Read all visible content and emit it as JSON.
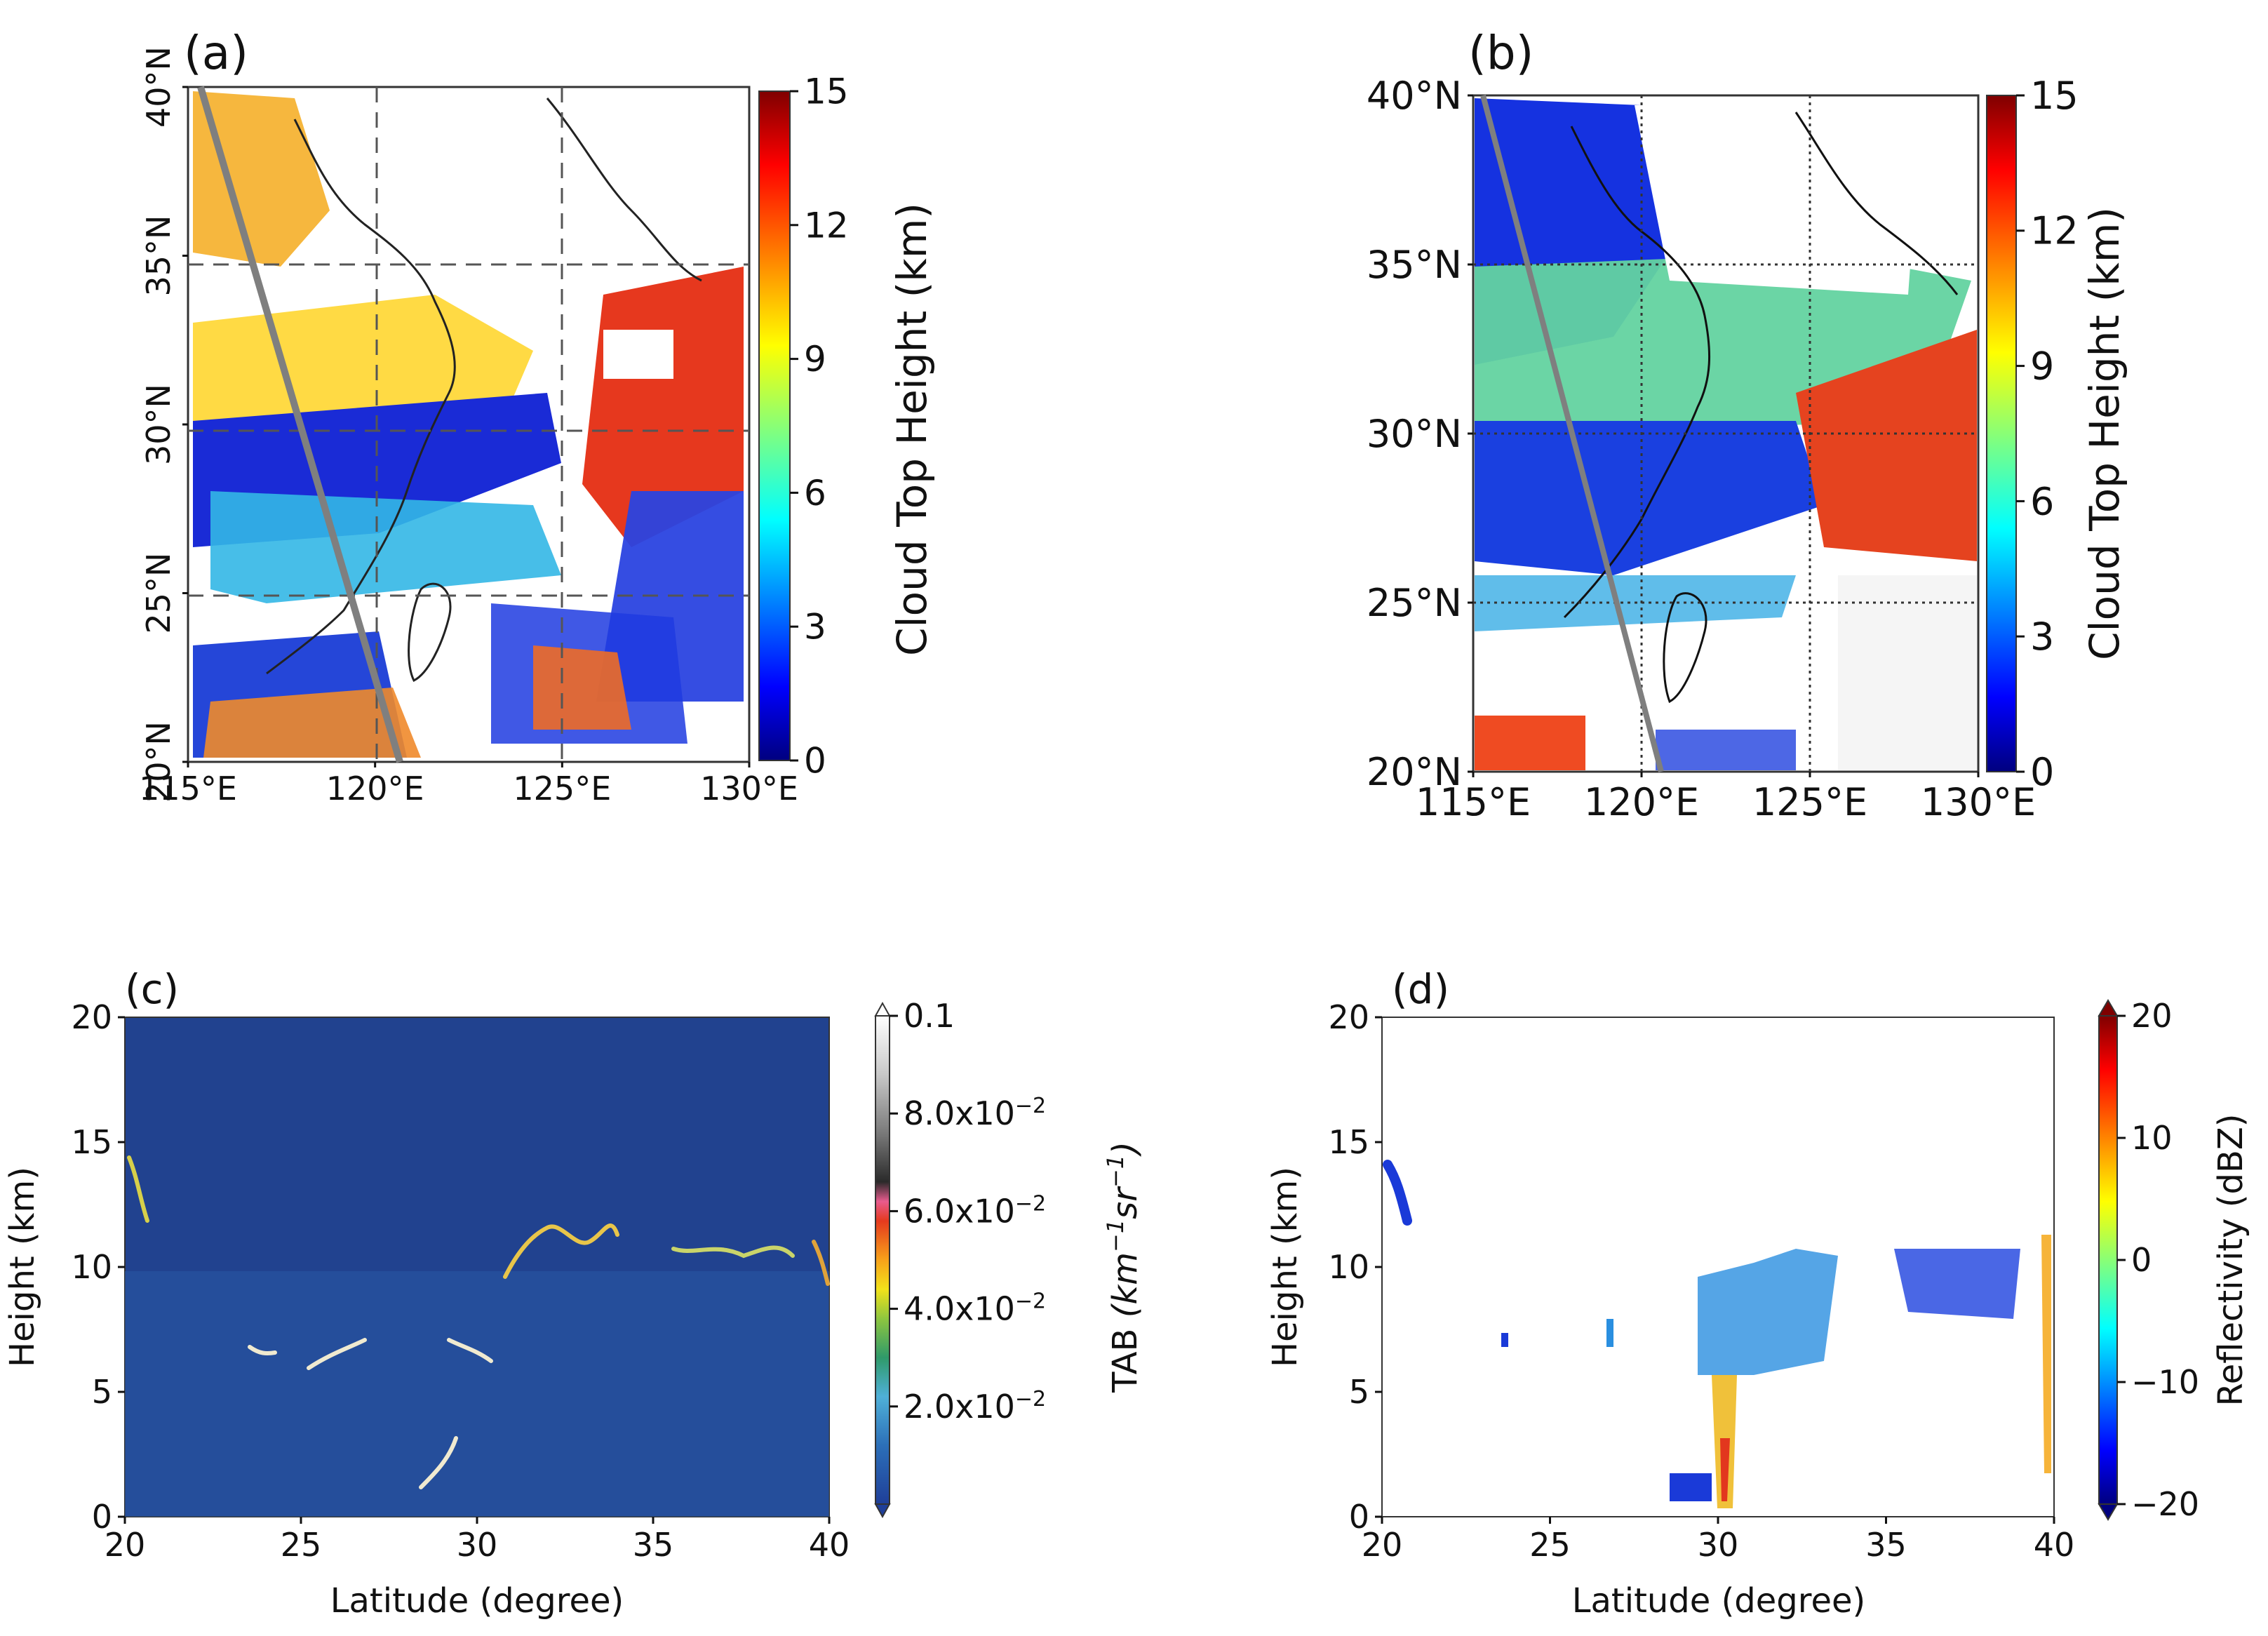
{
  "chart_data": [
    {
      "panel": "(a)",
      "type": "heatmap",
      "description_kind": "satellite cloud top height map",
      "x_ticks": [
        "115°E",
        "120°E",
        "125°E",
        "130°E"
      ],
      "x_values": [
        115,
        120,
        125,
        130
      ],
      "y_ticks": [
        "20°N",
        "25°N",
        "30°N",
        "35°N",
        "40°N"
      ],
      "y_values": [
        20,
        25,
        30,
        35,
        40
      ],
      "xlim": [
        115,
        130
      ],
      "ylim": [
        20,
        40
      ],
      "colorbar": {
        "label": "Cloud Top Height (km)",
        "ticks": [
          "0",
          "3",
          "6",
          "9",
          "12",
          "15"
        ],
        "range": [
          0,
          15
        ]
      },
      "track": {
        "start": [
          115.3,
          40
        ],
        "end": [
          120.6,
          20
        ],
        "color": "#7f7f7f"
      }
    },
    {
      "panel": "(b)",
      "type": "heatmap",
      "description_kind": "satellite cloud top height map",
      "x_ticks": [
        "115°E",
        "120°E",
        "125°E",
        "130°E"
      ],
      "x_values": [
        115,
        120,
        125,
        130
      ],
      "y_ticks": [
        "20°N",
        "25°N",
        "30°N",
        "35°N",
        "40°N"
      ],
      "y_values": [
        20,
        25,
        30,
        35,
        40
      ],
      "xlim": [
        115,
        130
      ],
      "ylim": [
        20,
        40
      ],
      "colorbar": {
        "label": "Cloud Top Height (km)",
        "ticks": [
          "0",
          "3",
          "6",
          "9",
          "12",
          "15"
        ],
        "range": [
          0,
          15
        ]
      },
      "track": {
        "start": [
          115.3,
          40
        ],
        "end": [
          120.6,
          20
        ],
        "color": "#7f7f7f"
      }
    },
    {
      "panel": "(c)",
      "type": "heatmap",
      "xlabel": "Latitude (degree)",
      "ylabel": "Height (km)",
      "x_ticks": [
        "20",
        "25",
        "30",
        "35",
        "40"
      ],
      "x_values": [
        20,
        25,
        30,
        35,
        40
      ],
      "y_ticks": [
        "0",
        "5",
        "10",
        "15",
        "20"
      ],
      "y_values": [
        0,
        5,
        10,
        15,
        20
      ],
      "xlim": [
        20,
        40
      ],
      "ylim": [
        0,
        20
      ],
      "colorbar": {
        "label": "TAB (km⁻¹sr⁻¹)",
        "label_main": "TAB ",
        "label_units_a": "(km",
        "label_sup_a": "−1",
        "label_units_b": "sr",
        "label_sup_b": "−1",
        "label_units_c": ")",
        "ticks": [
          {
            "mant": "0.1",
            "exp": ""
          },
          {
            "mant": "8.0x10",
            "exp": "−2"
          },
          {
            "mant": "6.0x10",
            "exp": "−2"
          },
          {
            "mant": "4.0x10",
            "exp": "−2"
          },
          {
            "mant": "2.0x10",
            "exp": "−2"
          }
        ],
        "tick_values": [
          0.1,
          0.08,
          0.06,
          0.04,
          0.02
        ],
        "range": [
          0,
          0.1
        ]
      }
    },
    {
      "panel": "(d)",
      "type": "heatmap",
      "xlabel": "Latitude (degree)",
      "ylabel": "Height (km)",
      "x_ticks": [
        "20",
        "25",
        "30",
        "35",
        "40"
      ],
      "x_values": [
        20,
        25,
        30,
        35,
        40
      ],
      "y_ticks": [
        "0",
        "5",
        "10",
        "15",
        "20"
      ],
      "y_values": [
        0,
        5,
        10,
        15,
        20
      ],
      "xlim": [
        20,
        40
      ],
      "ylim": [
        0,
        20
      ],
      "colorbar": {
        "label": "Reflectivity (dBZ)",
        "ticks": [
          "20",
          "10",
          "0",
          "−10",
          "−20"
        ],
        "tick_values": [
          20,
          10,
          0,
          -10,
          -20
        ],
        "range": [
          -20,
          20
        ]
      }
    }
  ]
}
